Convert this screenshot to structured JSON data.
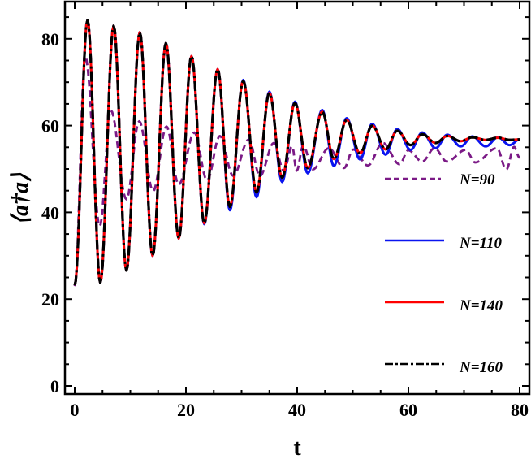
{
  "chart_data": {
    "type": "line",
    "xlabel": "t",
    "ylabel": "⟨a†a⟩",
    "xlim": [
      0,
      80
    ],
    "ylim": [
      0,
      88
    ],
    "xticks": [
      "0",
      "20",
      "40",
      "60",
      "80"
    ],
    "yticks": [
      "0",
      "20",
      "40",
      "60",
      "80"
    ],
    "grid": false,
    "legend_position": "right",
    "series_note_format": "local extrema [t, value]",
    "series": [
      {
        "name": "N=90",
        "color": "#7B1A86",
        "style": "dashed",
        "points": [
          [
            0,
            23
          ],
          [
            1.9,
            75.9
          ],
          [
            4.5,
            36.8
          ],
          [
            6.5,
            63.5
          ],
          [
            9.3,
            43
          ],
          [
            11.6,
            61
          ],
          [
            14.1,
            44.9
          ],
          [
            16.5,
            59.8
          ],
          [
            18.7,
            46.4
          ],
          [
            21.5,
            58.4
          ],
          [
            23.8,
            47.4
          ],
          [
            26.1,
            57.6
          ],
          [
            28.5,
            48.4
          ],
          [
            31.3,
            56.8
          ],
          [
            33.3,
            48.4
          ],
          [
            35.8,
            56
          ],
          [
            37.6,
            49.6
          ],
          [
            39.1,
            55.2
          ],
          [
            39.9,
            49.6
          ],
          [
            41.1,
            55.4
          ],
          [
            42.8,
            49.9
          ],
          [
            45.7,
            54.8
          ],
          [
            48.4,
            50.2
          ],
          [
            50.1,
            54.5
          ],
          [
            52.7,
            50.8
          ],
          [
            55.4,
            56
          ],
          [
            58.4,
            51.1
          ],
          [
            60,
            54.3
          ],
          [
            62.5,
            51.7
          ],
          [
            64.7,
            54.8
          ],
          [
            66.9,
            51.7
          ],
          [
            70.3,
            54.4
          ],
          [
            72,
            51.5
          ],
          [
            75.9,
            54.8
          ],
          [
            77.6,
            49.9
          ],
          [
            79,
            55.1
          ],
          [
            80,
            52.6
          ]
        ]
      },
      {
        "name": "N=110",
        "color": "#0A14F0",
        "style": "solid",
        "points": [
          [
            0,
            23.2
          ],
          [
            2.3,
            84.3
          ],
          [
            4.6,
            23.8
          ],
          [
            7,
            83
          ],
          [
            9.3,
            26.6
          ],
          [
            11.7,
            81.5
          ],
          [
            14,
            30
          ],
          [
            16.4,
            79
          ],
          [
            18.7,
            34
          ],
          [
            21,
            76
          ],
          [
            23.3,
            37.3
          ],
          [
            25.7,
            73
          ],
          [
            27.9,
            40.5
          ],
          [
            30.3,
            70.5
          ],
          [
            32.7,
            43.5
          ],
          [
            35,
            67.8
          ],
          [
            37.3,
            47
          ],
          [
            39.6,
            65.5
          ],
          [
            41.9,
            49
          ],
          [
            44.5,
            63.6
          ],
          [
            46.6,
            50.7
          ],
          [
            48.9,
            61.7
          ],
          [
            51.3,
            52.2
          ],
          [
            53.5,
            60.4
          ],
          [
            55.9,
            53.3
          ],
          [
            58,
            59.2
          ],
          [
            60.4,
            54.4
          ],
          [
            62.5,
            58.4
          ],
          [
            64.9,
            54.8
          ],
          [
            67,
            57.9
          ],
          [
            69.4,
            55.2
          ],
          [
            71.5,
            57.5
          ],
          [
            73.9,
            55.2
          ],
          [
            76.1,
            57.3
          ],
          [
            78.2,
            55.5
          ],
          [
            80,
            56.8
          ]
        ]
      },
      {
        "name": "N=140",
        "color": "#FF0000",
        "style": "solid",
        "points": [
          [
            0,
            23.2
          ],
          [
            2.3,
            84.3
          ],
          [
            4.6,
            23.8
          ],
          [
            7,
            83
          ],
          [
            9.3,
            26.6
          ],
          [
            11.7,
            81.5
          ],
          [
            14,
            30
          ],
          [
            16.4,
            79
          ],
          [
            18.7,
            34
          ],
          [
            21,
            76
          ],
          [
            23.3,
            37.5
          ],
          [
            25.7,
            73
          ],
          [
            27.9,
            41.3
          ],
          [
            30.3,
            70.3
          ],
          [
            32.7,
            44.6
          ],
          [
            35,
            67.5
          ],
          [
            37.3,
            48
          ],
          [
            39.6,
            65.2
          ],
          [
            41.9,
            50.2
          ],
          [
            44.5,
            63.2
          ],
          [
            46.6,
            52.3
          ],
          [
            48.9,
            61.3
          ],
          [
            51.3,
            53.6
          ],
          [
            53.5,
            60
          ],
          [
            55.9,
            54.5
          ],
          [
            58,
            58.8
          ],
          [
            60.4,
            55.5
          ],
          [
            62.5,
            58
          ],
          [
            64.9,
            56
          ],
          [
            67,
            57.6
          ],
          [
            69.4,
            56.4
          ],
          [
            71.5,
            57.3
          ],
          [
            73.9,
            56.7
          ],
          [
            76.1,
            57.2
          ],
          [
            78.2,
            56.7
          ],
          [
            80,
            56.8
          ]
        ]
      },
      {
        "name": "N=160",
        "color": "#000000",
        "style": "dash-dot",
        "points": [
          [
            0,
            23.2
          ],
          [
            2.3,
            84.3
          ],
          [
            4.6,
            23.8
          ],
          [
            7,
            83
          ],
          [
            9.3,
            26.6
          ],
          [
            11.7,
            81.5
          ],
          [
            14,
            30
          ],
          [
            16.4,
            79
          ],
          [
            18.7,
            34
          ],
          [
            21,
            76
          ],
          [
            23.3,
            37.5
          ],
          [
            25.7,
            73
          ],
          [
            27.9,
            41.3
          ],
          [
            30.3,
            70.3
          ],
          [
            32.7,
            44.6
          ],
          [
            35,
            67.5
          ],
          [
            37.3,
            48
          ],
          [
            39.6,
            65.2
          ],
          [
            41.9,
            50.2
          ],
          [
            44.5,
            63.2
          ],
          [
            46.6,
            52.3
          ],
          [
            48.9,
            61.3
          ],
          [
            51.3,
            53.6
          ],
          [
            53.5,
            60
          ],
          [
            55.9,
            54.5
          ],
          [
            58,
            58.8
          ],
          [
            60.4,
            55.5
          ],
          [
            62.5,
            58
          ],
          [
            64.9,
            56
          ],
          [
            67,
            57.6
          ],
          [
            69.4,
            56.4
          ],
          [
            71.5,
            57.3
          ],
          [
            73.9,
            56.7
          ],
          [
            76.1,
            57.2
          ],
          [
            78.2,
            56.7
          ],
          [
            80,
            56.8
          ]
        ]
      }
    ]
  }
}
